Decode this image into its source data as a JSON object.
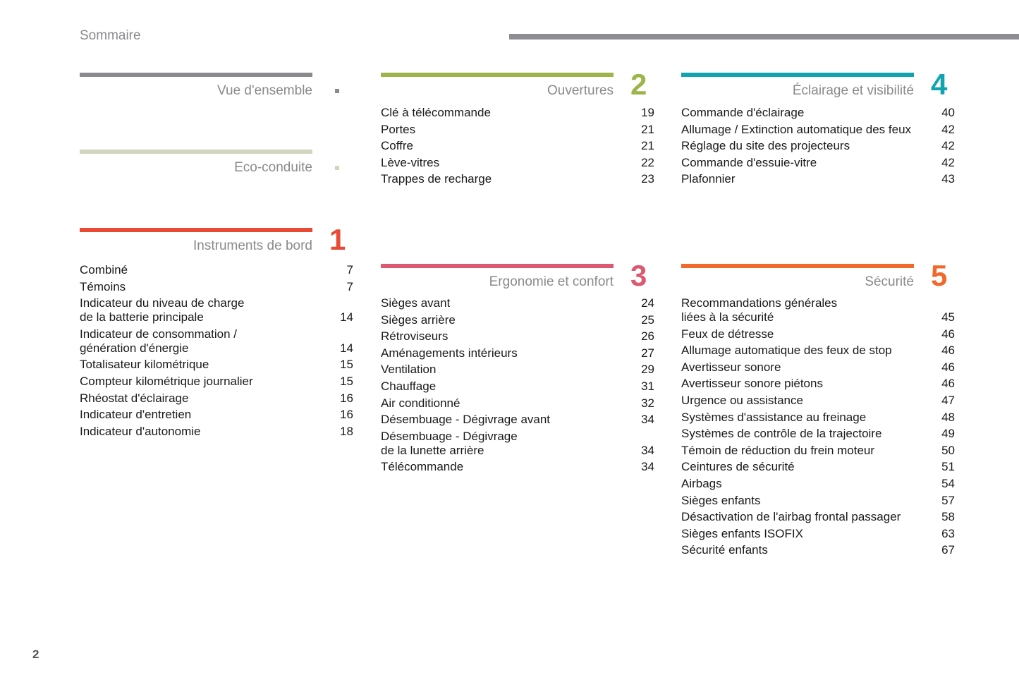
{
  "header": {
    "title": "Sommaire",
    "page_number": "2"
  },
  "sections": [
    {
      "title": "Vue d'ensemble",
      "color": "#8a898e",
      "items": []
    },
    {
      "title": "Eco-conduite",
      "color": "#d3d4bd",
      "items": []
    },
    {
      "title": "Instruments de bord",
      "number": "1",
      "color": "#e84a36",
      "items": [
        {
          "label": "Combiné",
          "page": "7"
        },
        {
          "label": "Témoins",
          "page": "7"
        },
        {
          "label": "Indicateur du niveau de charge\nde la batterie principale",
          "page": "14"
        },
        {
          "label": "Indicateur de consommation /\ngénération d'énergie",
          "page": "14"
        },
        {
          "label": "Totalisateur kilométrique",
          "page": "15"
        },
        {
          "label": "Compteur kilométrique journalier",
          "page": "15"
        },
        {
          "label": "Rhéostat d'éclairage",
          "page": "16"
        },
        {
          "label": "Indicateur d'entretien",
          "page": "16"
        },
        {
          "label": "Indicateur d'autonomie",
          "page": "18"
        }
      ]
    },
    {
      "title": "Ouvertures",
      "number": "2",
      "color": "#9bb548",
      "items": [
        {
          "label": "Clé à télécommande",
          "page": "19"
        },
        {
          "label": "Portes",
          "page": "21"
        },
        {
          "label": "Coffre",
          "page": "21"
        },
        {
          "label": "Lève-vitres",
          "page": "22"
        },
        {
          "label": "Trappes de recharge",
          "page": "23"
        }
      ]
    },
    {
      "title": "Ergonomie et confort",
      "number": "3",
      "color": "#db5a72",
      "items": [
        {
          "label": "Sièges avant",
          "page": "24"
        },
        {
          "label": "Sièges arrière",
          "page": "25"
        },
        {
          "label": "Rétroviseurs",
          "page": "26"
        },
        {
          "label": "Aménagements intérieurs",
          "page": "27"
        },
        {
          "label": "Ventilation",
          "page": "29"
        },
        {
          "label": "Chauffage",
          "page": "31"
        },
        {
          "label": "Air conditionné",
          "page": "32"
        },
        {
          "label": "Désembuage - Dégivrage avant",
          "page": "34"
        },
        {
          "label": "Désembuage - Dégivrage\nde la lunette arrière",
          "page": "34"
        },
        {
          "label": "Télécommande",
          "page": "34"
        }
      ]
    },
    {
      "title": "Éclairage et visibilité",
      "number": "4",
      "color": "#12a3b0",
      "items": [
        {
          "label": "Commande d'éclairage",
          "page": "40"
        },
        {
          "label": "Allumage / Extinction automatique des feux",
          "page": "42"
        },
        {
          "label": "Réglage du site des projecteurs",
          "page": "42"
        },
        {
          "label": "Commande d'essuie-vitre",
          "page": "42"
        },
        {
          "label": "Plafonnier",
          "page": "43"
        }
      ]
    },
    {
      "title": "Sécurité",
      "number": "5",
      "color": "#ef6a2c",
      "items": [
        {
          "label": "Recommandations générales\nliées à la sécurité",
          "page": "45"
        },
        {
          "label": "Feux de détresse",
          "page": "46"
        },
        {
          "label": "Allumage automatique des feux de stop",
          "page": "46"
        },
        {
          "label": "Avertisseur sonore",
          "page": "46"
        },
        {
          "label": "Avertisseur sonore piétons",
          "page": "46"
        },
        {
          "label": "Urgence ou assistance",
          "page": "47"
        },
        {
          "label": "Systèmes d'assistance au freinage",
          "page": "48"
        },
        {
          "label": "Systèmes de contrôle de la trajectoire",
          "page": "49"
        },
        {
          "label": "Témoin de réduction du frein moteur",
          "page": "50"
        },
        {
          "label": "Ceintures de sécurité",
          "page": "51"
        },
        {
          "label": "Airbags",
          "page": "54"
        },
        {
          "label": "Sièges enfants",
          "page": "57"
        },
        {
          "label": "Désactivation de l'airbag frontal passager",
          "page": "58"
        },
        {
          "label": "Sièges enfants ISOFIX",
          "page": "63"
        },
        {
          "label": "Sécurité enfants",
          "page": "67"
        }
      ]
    }
  ]
}
